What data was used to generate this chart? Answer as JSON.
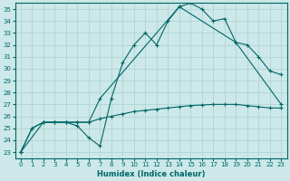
{
  "background_color": "#cce8e8",
  "grid_color": "#aacccc",
  "line_color": "#006666",
  "xlabel": "Humidex (Indice chaleur)",
  "xlim": [
    -0.5,
    23.5
  ],
  "ylim": [
    22.5,
    35.5
  ],
  "yticks": [
    23,
    24,
    25,
    26,
    27,
    28,
    29,
    30,
    31,
    32,
    33,
    34,
    35
  ],
  "xticks": [
    0,
    1,
    2,
    3,
    4,
    5,
    6,
    7,
    8,
    9,
    10,
    11,
    12,
    13,
    14,
    15,
    16,
    17,
    18,
    19,
    20,
    21,
    22,
    23
  ],
  "curve1_x": [
    0,
    1,
    2,
    3,
    4,
    5,
    6,
    7,
    8,
    9,
    10,
    11,
    12,
    13,
    14,
    15,
    16,
    17,
    18,
    19,
    20,
    21,
    22,
    23
  ],
  "curve1_y": [
    23,
    25,
    25.5,
    25.5,
    25.5,
    25.2,
    24.2,
    23.5,
    27.5,
    30.5,
    32.0,
    33.0,
    32.0,
    34.0,
    35.2,
    35.5,
    35.0,
    34.0,
    34.2,
    32.2,
    32.0,
    31.0,
    29.8,
    29.5
  ],
  "curve2_x": [
    0,
    2,
    3,
    4,
    5,
    6,
    7,
    14,
    19,
    23
  ],
  "curve2_y": [
    23,
    25.5,
    25.5,
    25.5,
    25.5,
    25.5,
    27.5,
    35.2,
    32.2,
    27.0
  ],
  "curve3_x": [
    0,
    1,
    2,
    3,
    4,
    5,
    6,
    7,
    8,
    9,
    10,
    11,
    12,
    13,
    14,
    15,
    16,
    17,
    18,
    19,
    20,
    21,
    22,
    23
  ],
  "curve3_y": [
    23.0,
    25.0,
    25.5,
    25.5,
    25.5,
    25.5,
    25.5,
    25.8,
    26.0,
    26.2,
    26.4,
    26.5,
    26.6,
    26.7,
    26.8,
    26.9,
    26.95,
    27.0,
    27.0,
    27.0,
    26.9,
    26.8,
    26.7,
    26.7
  ]
}
